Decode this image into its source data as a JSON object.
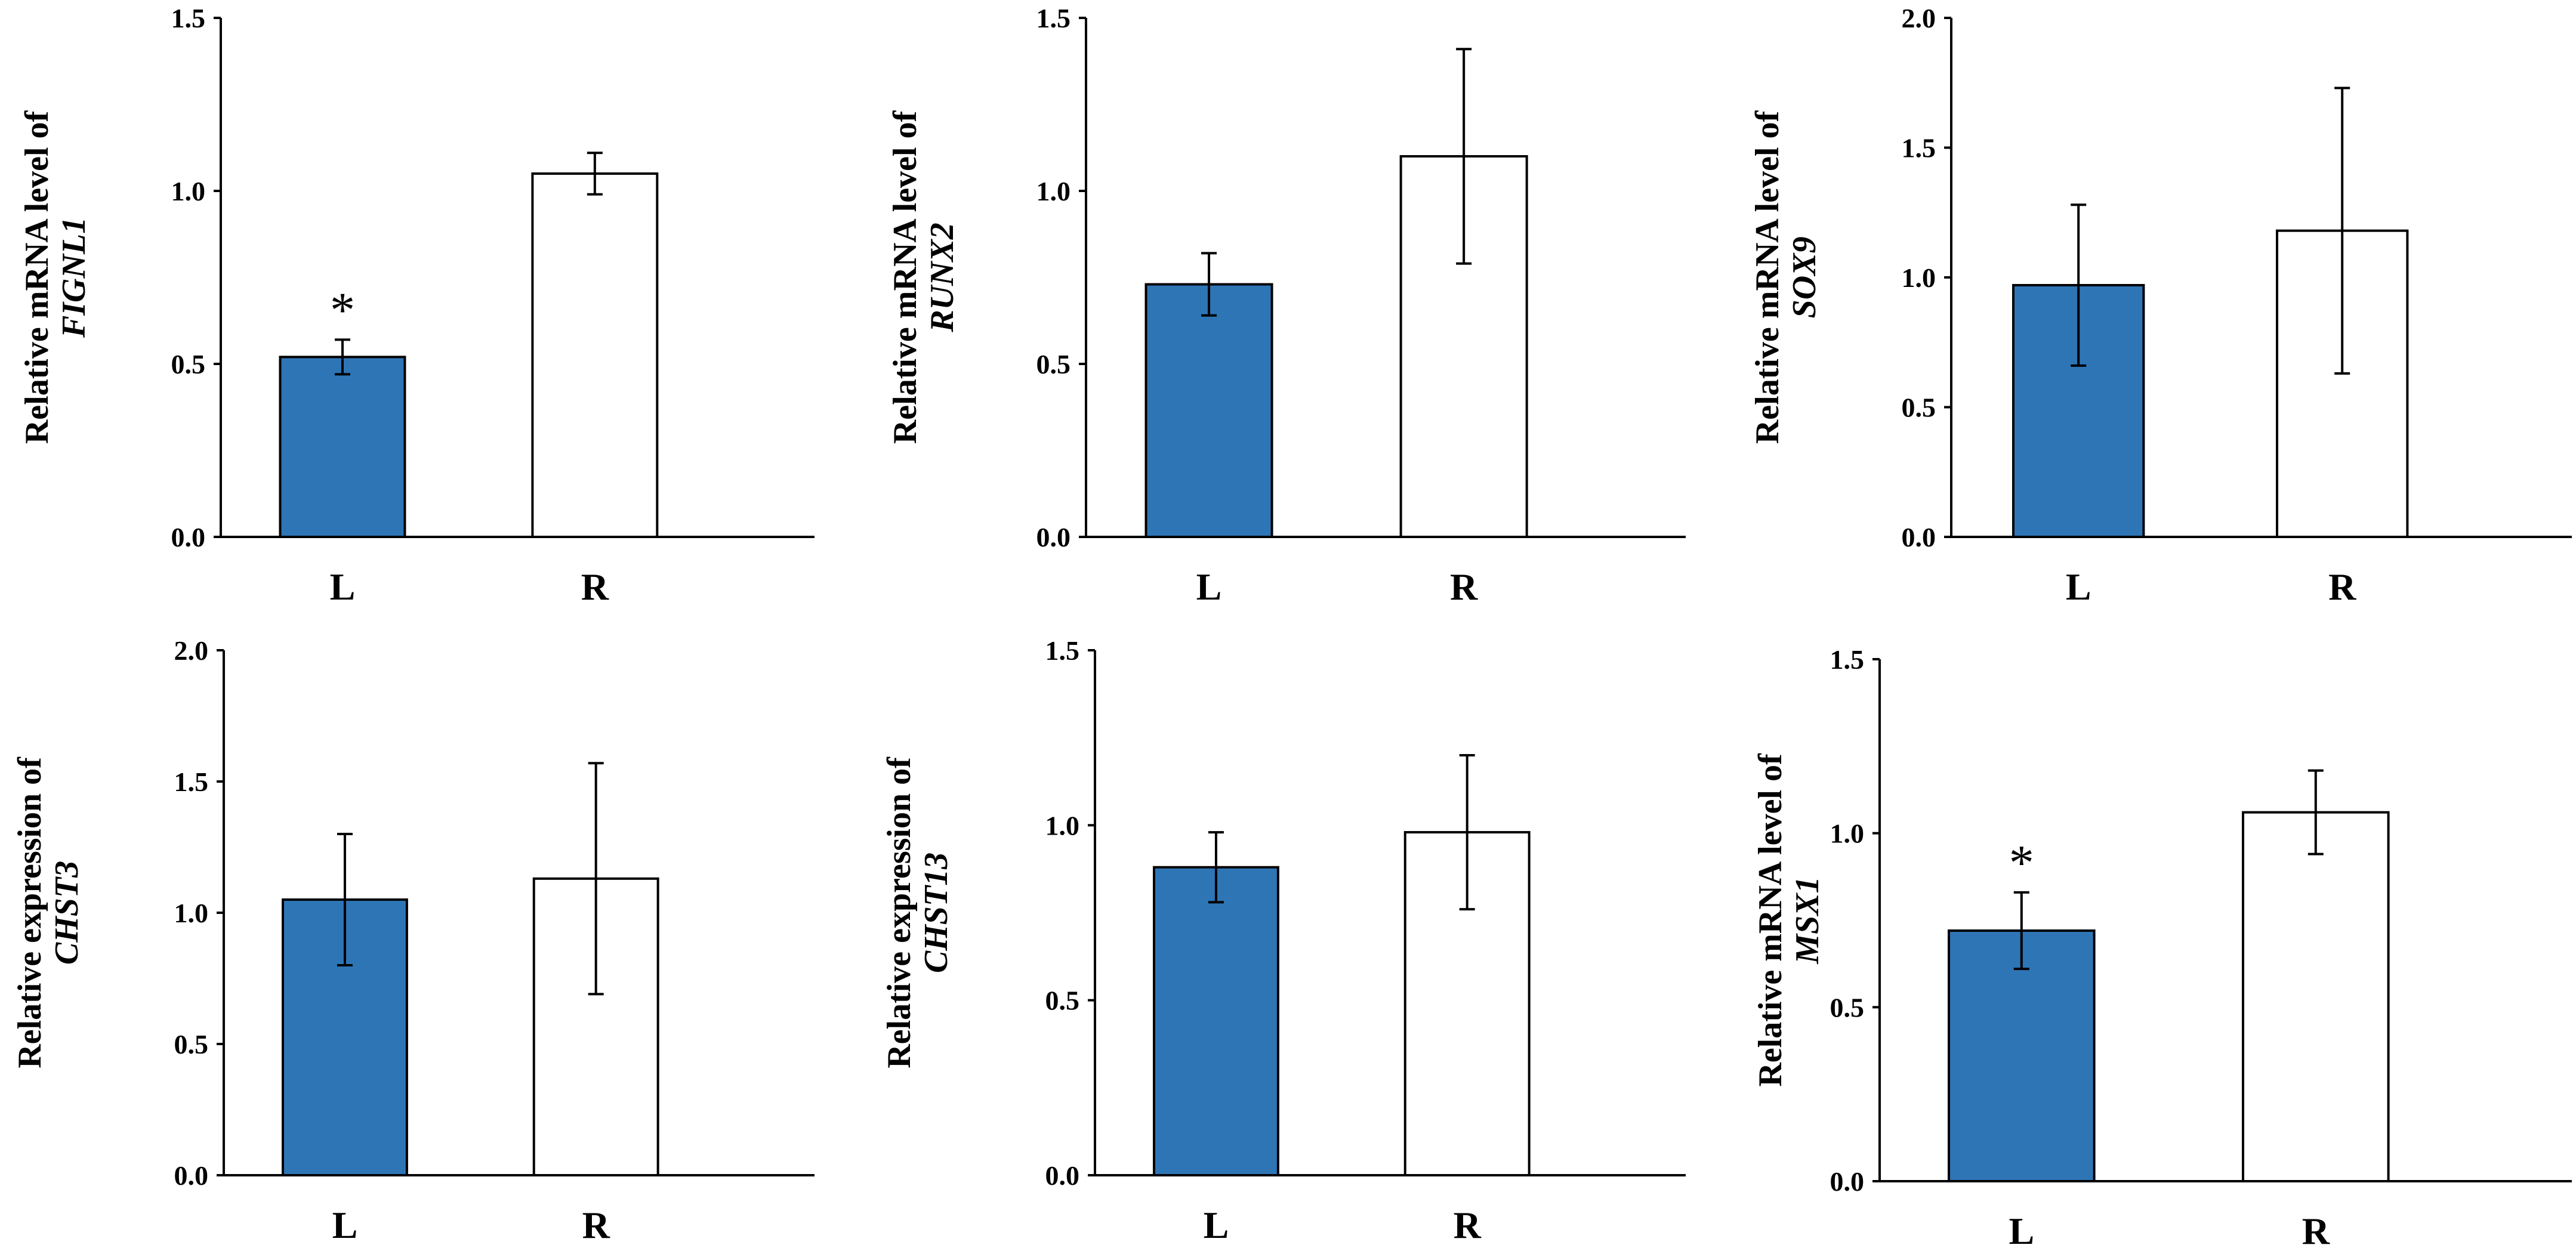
{
  "colors": {
    "filled": "#2E75B6",
    "open": "#FFFFFF",
    "stroke": "#000000"
  },
  "chart_data": [
    {
      "type": "bar",
      "ylabel_line1": "Relative mRNA level of",
      "ylabel_gene": "FIGNL1",
      "categories": [
        "L",
        "R"
      ],
      "values": [
        0.52,
        1.05
      ],
      "errors": [
        0.05,
        0.06
      ],
      "significance": [
        "*",
        ""
      ],
      "ylim": [
        0,
        1.5
      ],
      "yticks": [
        "0.0",
        "0.5",
        "1.0",
        "1.5"
      ]
    },
    {
      "type": "bar",
      "ylabel_line1": "Relative mRNA level of",
      "ylabel_gene": "RUNX2",
      "categories": [
        "L",
        "R"
      ],
      "values": [
        0.73,
        1.1
      ],
      "errors": [
        0.09,
        0.31
      ],
      "significance": [
        "",
        ""
      ],
      "ylim": [
        0,
        1.5
      ],
      "yticks": [
        "0.0",
        "0.5",
        "1.0",
        "1.5"
      ]
    },
    {
      "type": "bar",
      "ylabel_line1": "Relative mRNA level of",
      "ylabel_gene": "SOX9",
      "categories": [
        "L",
        "R"
      ],
      "values": [
        0.97,
        1.18
      ],
      "errors": [
        0.31,
        0.55
      ],
      "significance": [
        "",
        ""
      ],
      "ylim": [
        0,
        2.0
      ],
      "yticks": [
        "0.0",
        "0.5",
        "1.0",
        "1.5",
        "2.0"
      ]
    },
    {
      "type": "bar",
      "ylabel_line1": "Relative expression of",
      "ylabel_gene": "CHST3",
      "categories": [
        "L",
        "R"
      ],
      "values": [
        1.05,
        1.13
      ],
      "errors": [
        0.25,
        0.44
      ],
      "significance": [
        "",
        ""
      ],
      "ylim": [
        0,
        2.0
      ],
      "yticks": [
        "0.0",
        "0.5",
        "1.0",
        "1.5",
        "2.0"
      ]
    },
    {
      "type": "bar",
      "ylabel_line1": "Relative expression of",
      "ylabel_gene": "CHST13",
      "categories": [
        "L",
        "R"
      ],
      "values": [
        0.88,
        0.98
      ],
      "errors": [
        0.1,
        0.22
      ],
      "significance": [
        "",
        ""
      ],
      "ylim": [
        0,
        1.5
      ],
      "yticks": [
        "0.0",
        "0.5",
        "1.0",
        "1.5"
      ]
    },
    {
      "type": "bar",
      "ylabel_line1": "Relative mRNA level of",
      "ylabel_gene": "MSX1",
      "categories": [
        "L",
        "R"
      ],
      "values": [
        0.72,
        1.06
      ],
      "errors": [
        0.11,
        0.12
      ],
      "significance": [
        "*",
        ""
      ],
      "ylim": [
        0,
        1.5
      ],
      "yticks": [
        "0.0",
        "0.5",
        "1.0",
        "1.5"
      ]
    }
  ]
}
